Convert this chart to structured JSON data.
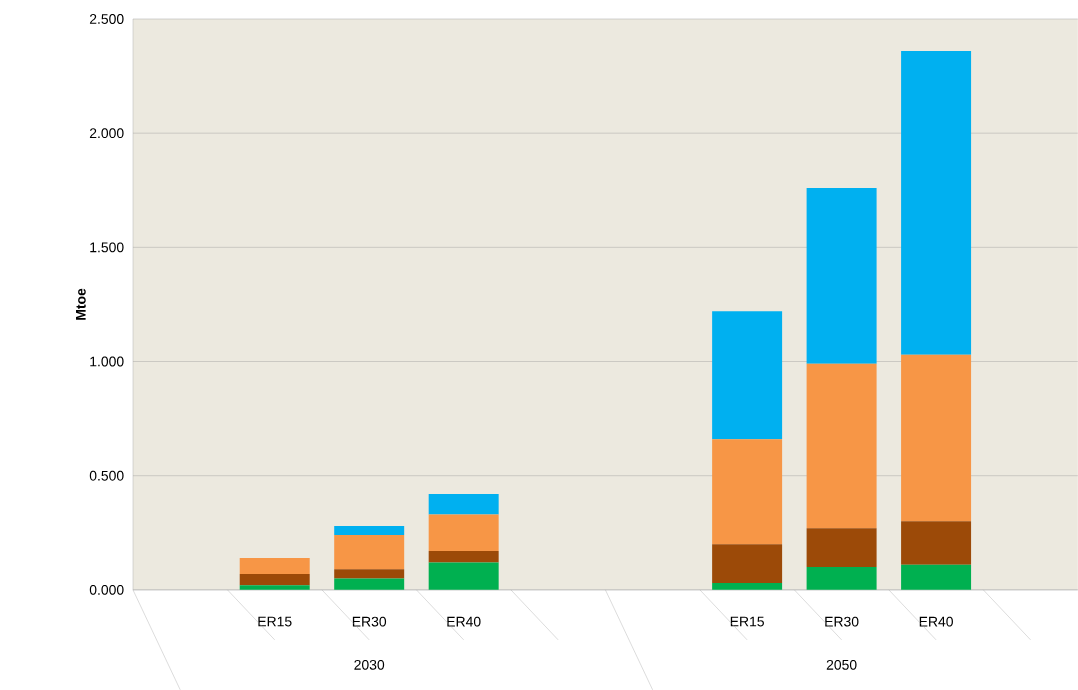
{
  "chart_data": {
    "type": "bar",
    "stacked": true,
    "ylabel": "Mtoe",
    "categories": [
      null,
      "ER15",
      "ER30",
      "ER40",
      null,
      null,
      "ER15",
      "ER30",
      "ER40",
      null
    ],
    "series": [
      {
        "color": "#00b050",
        "values": [
          null,
          0.02,
          0.05,
          0.12,
          null,
          null,
          0.03,
          0.1,
          0.11,
          null
        ]
      },
      {
        "color": "#9c4a08",
        "values": [
          null,
          0.05,
          0.04,
          0.05,
          null,
          null,
          0.17,
          0.17,
          0.19,
          null
        ]
      },
      {
        "color": "#f79646",
        "values": [
          null,
          0.07,
          0.15,
          0.16,
          null,
          null,
          0.46,
          0.72,
          0.73,
          null
        ]
      },
      {
        "color": "#00b0f0",
        "values": [
          null,
          0,
          0.04,
          0.09,
          null,
          null,
          0.56,
          0.77,
          1.33,
          null
        ]
      }
    ],
    "ylim": [
      0,
      2.5
    ],
    "yticks": [
      {
        "value": 0,
        "label": "0.000"
      },
      {
        "value": 0.5,
        "label": "0.500"
      },
      {
        "value": 1,
        "label": "1.000"
      },
      {
        "value": 1.5,
        "label": "1.500"
      },
      {
        "value": 2,
        "label": "2.000"
      },
      {
        "value": 2.5,
        "label": "2.500"
      }
    ],
    "grid": "y",
    "annotations": [
      "2030",
      "2050"
    ]
  }
}
